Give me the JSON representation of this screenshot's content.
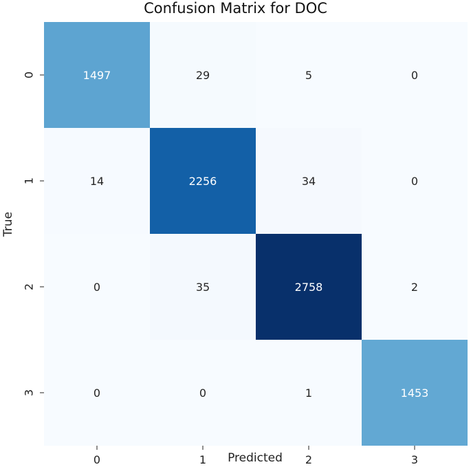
{
  "chart_data": {
    "type": "heatmap",
    "title": "Confusion Matrix for DOC",
    "xlabel": "Predicted",
    "ylabel": "True",
    "x_tick_labels": [
      "0",
      "1",
      "2",
      "3"
    ],
    "y_tick_labels": [
      "0",
      "1",
      "2",
      "3"
    ],
    "matrix": [
      [
        1497,
        29,
        5,
        0
      ],
      [
        14,
        2256,
        34,
        0
      ],
      [
        0,
        35,
        2758,
        2
      ],
      [
        0,
        0,
        1,
        1453
      ]
    ],
    "colormap": "Blues",
    "colorbar": false
  }
}
